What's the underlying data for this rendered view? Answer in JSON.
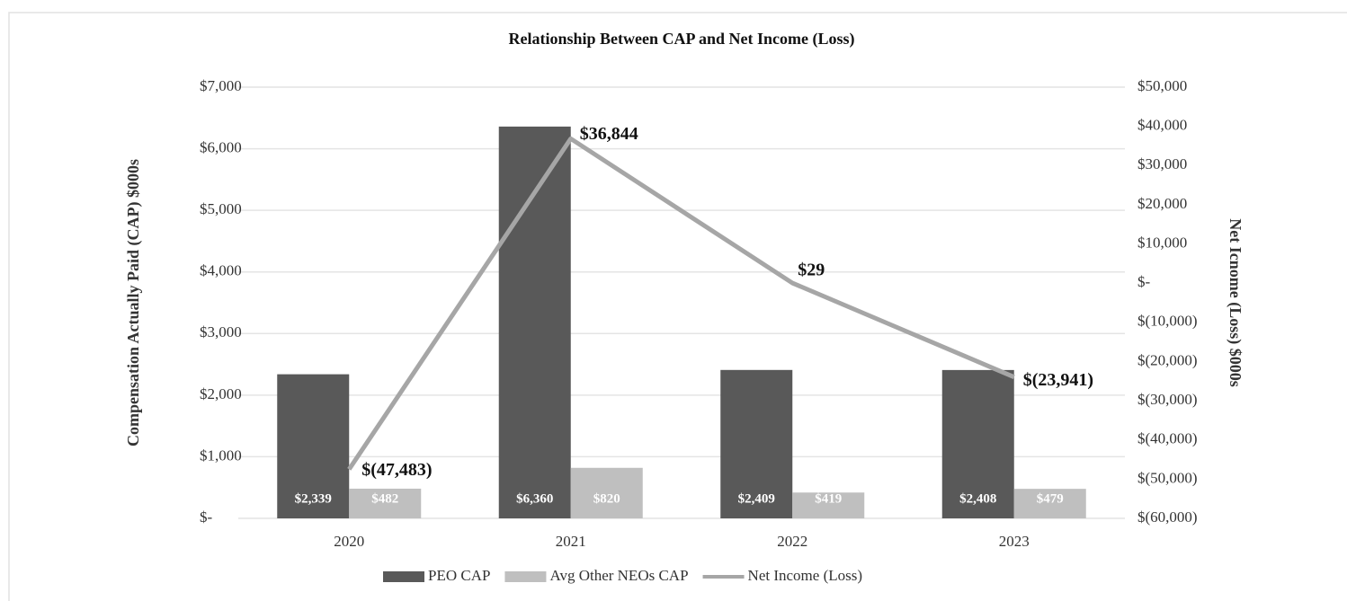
{
  "chart_data": {
    "type": "bar_line",
    "title": "Relationship Between CAP and Net Income (Loss)",
    "y_label": "Compensation Actually Paid (CAP) $000s",
    "y2_label": "Net Icnome (Loss) $000s",
    "categories": [
      "2020",
      "2021",
      "2022",
      "2023"
    ],
    "series": [
      {
        "name": "PEO CAP",
        "type": "bar",
        "color": "#595959",
        "values": [
          2339,
          6360,
          2409,
          2408
        ],
        "value_labels": [
          "$2,339",
          "$6,360",
          "$2,409",
          "$2,408"
        ]
      },
      {
        "name": "Avg Other NEOs CAP",
        "type": "bar",
        "color": "#bfbfbf",
        "values": [
          482,
          820,
          419,
          479
        ],
        "value_labels": [
          "$482",
          "$820",
          "$419",
          "$479"
        ]
      },
      {
        "name": "Net Income (Loss)",
        "type": "line",
        "axis": "y2",
        "color": "#a6a6a6",
        "values": [
          -47483,
          36844,
          29,
          -23941
        ],
        "value_labels": [
          "$(47,483)",
          "$36,844",
          "$29",
          "$(23,941)"
        ]
      }
    ],
    "ylim": [
      0,
      7000
    ],
    "yticks": [
      {
        "value": 0,
        "label": "$-"
      },
      {
        "value": 1000,
        "label": "$1,000"
      },
      {
        "value": 2000,
        "label": "$2,000"
      },
      {
        "value": 3000,
        "label": "$3,000"
      },
      {
        "value": 4000,
        "label": "$4,000"
      },
      {
        "value": 5000,
        "label": "$5,000"
      },
      {
        "value": 6000,
        "label": "$6,000"
      },
      {
        "value": 7000,
        "label": "$7,000"
      }
    ],
    "y2lim": [
      -60000,
      50000
    ],
    "y2ticks": [
      {
        "value": -60000,
        "label": "$(60,000)"
      },
      {
        "value": -50000,
        "label": "$(50,000)"
      },
      {
        "value": -40000,
        "label": "$(40,000)"
      },
      {
        "value": -30000,
        "label": "$(30,000)"
      },
      {
        "value": -20000,
        "label": "$(20,000)"
      },
      {
        "value": -10000,
        "label": "$(10,000)"
      },
      {
        "value": 0,
        "label": "$-"
      },
      {
        "value": 10000,
        "label": "$10,000"
      },
      {
        "value": 20000,
        "label": "$20,000"
      },
      {
        "value": 30000,
        "label": "$30,000"
      },
      {
        "value": 40000,
        "label": "$40,000"
      },
      {
        "value": 50000,
        "label": "$50,000"
      }
    ],
    "grid": true,
    "legend": "bottom"
  }
}
